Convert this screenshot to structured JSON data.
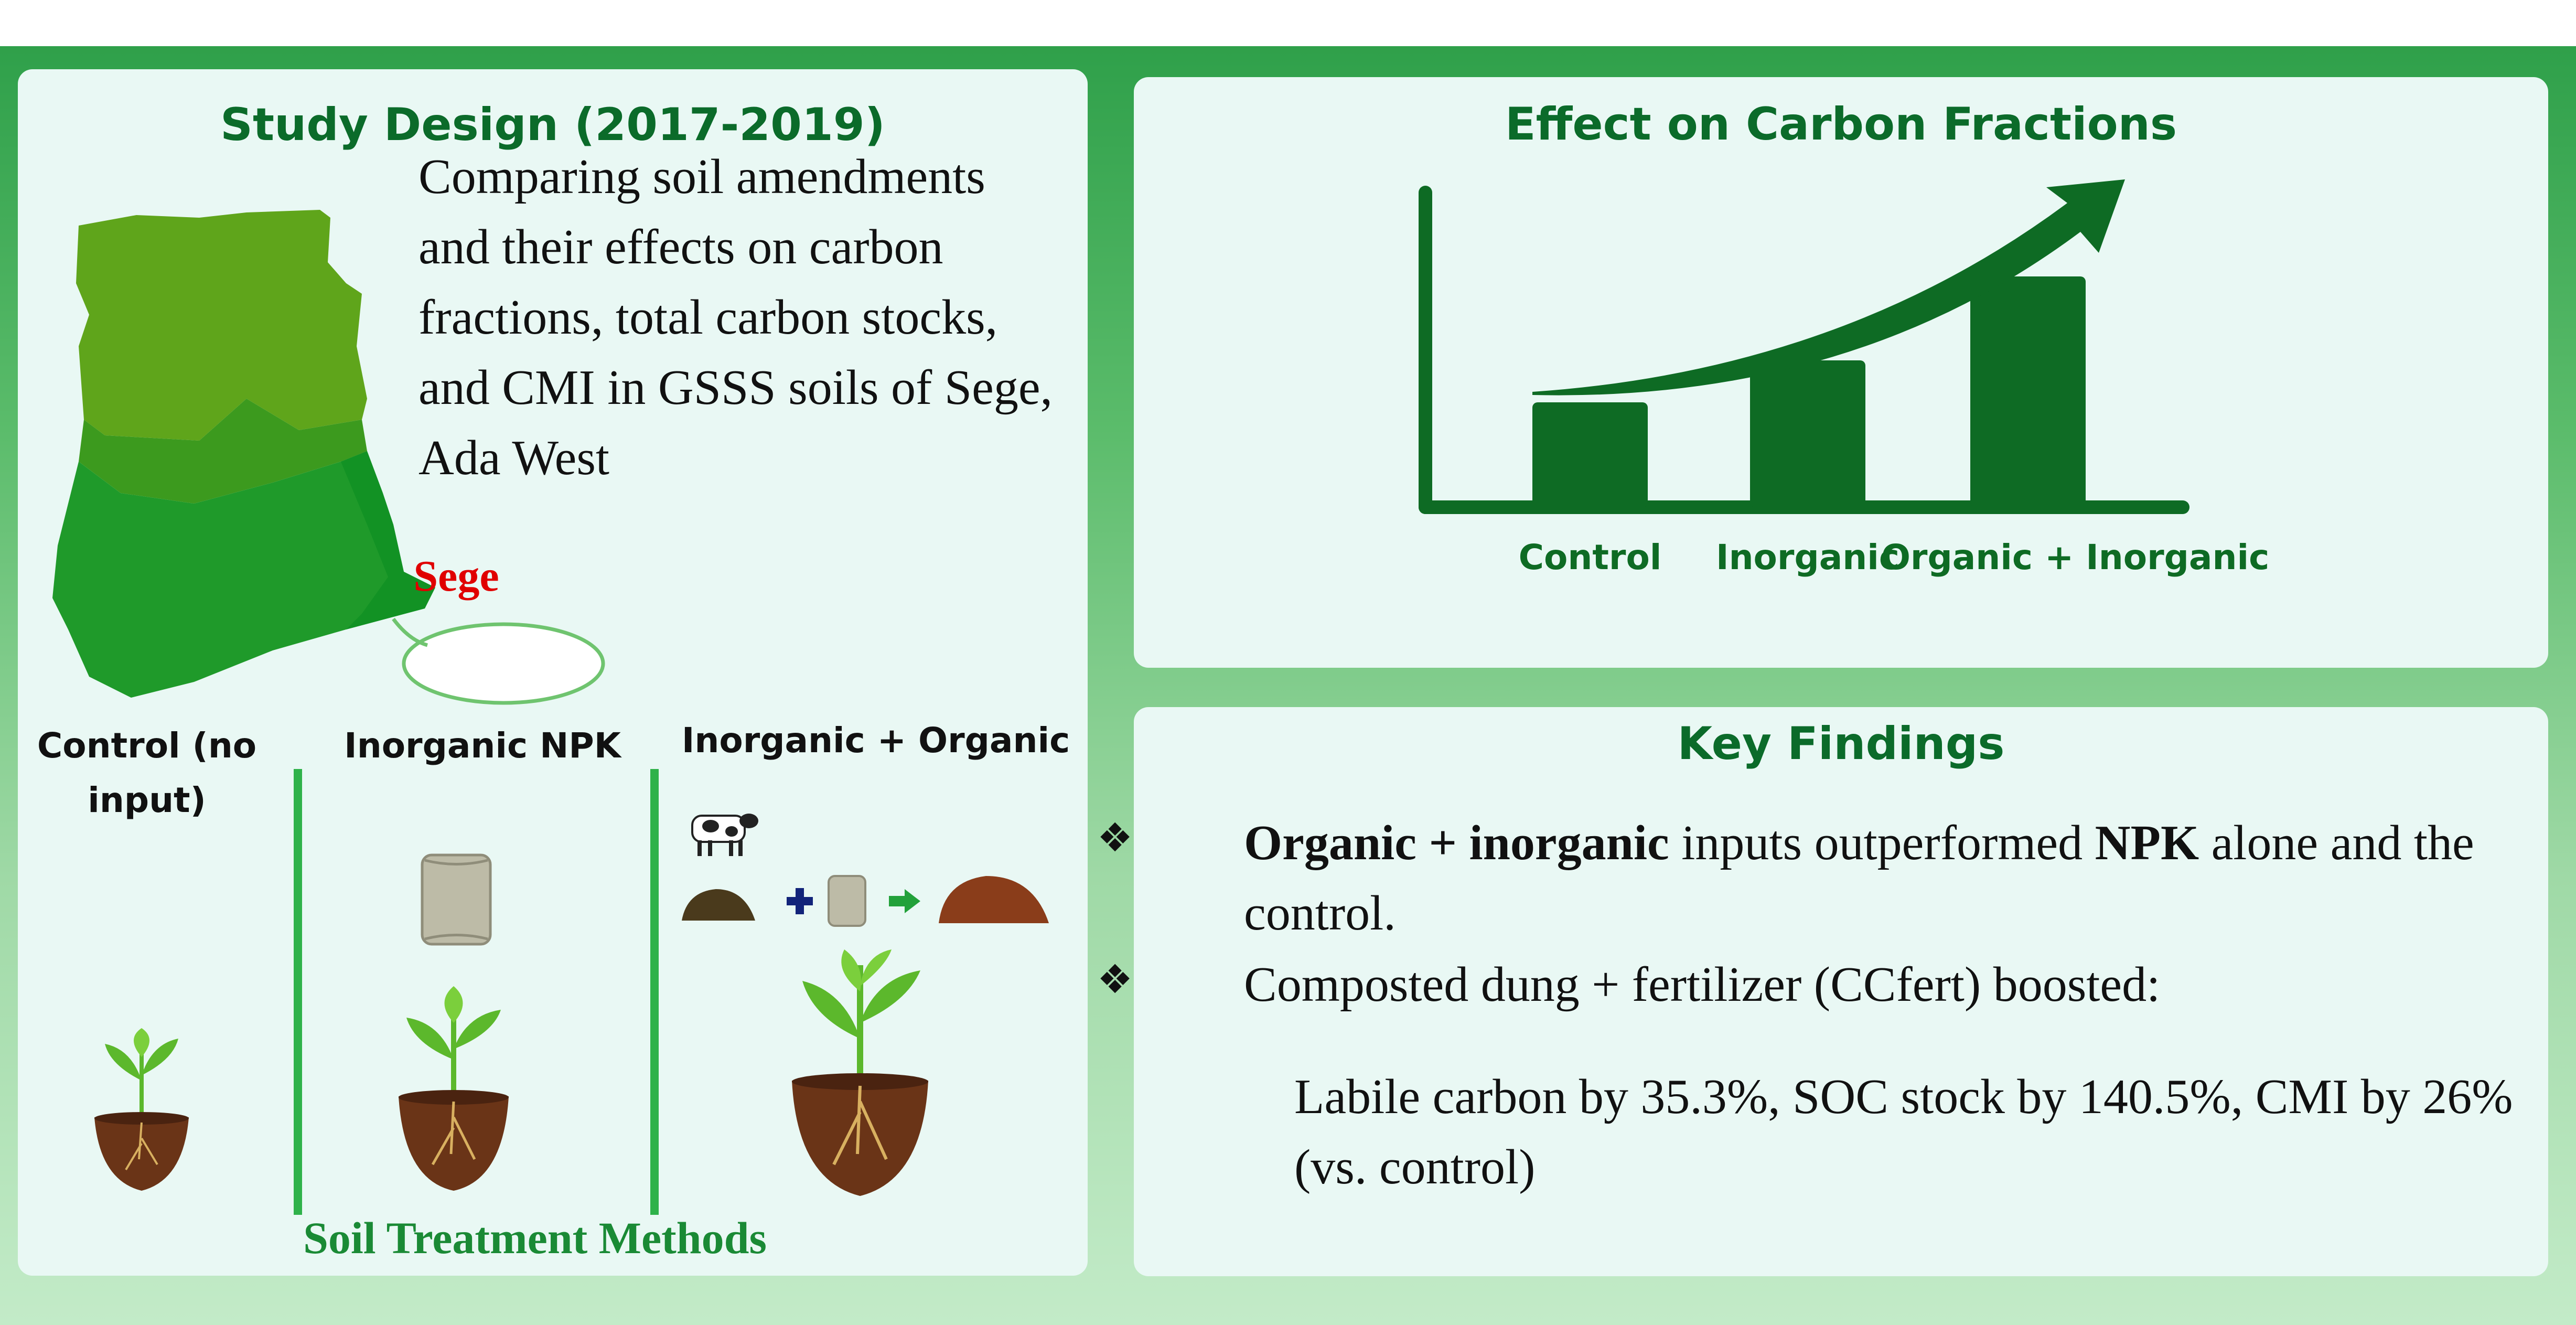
{
  "study": {
    "title": "Study Design (2017-2019)",
    "description": "Comparing soil amendments and their effects on carbon fractions, total carbon stocks, and CMI in GSSS soils of Sege, Ada West",
    "location_label": "Sege",
    "treatments": [
      {
        "label": "Control (no input)"
      },
      {
        "label": "Inorganic NPK"
      },
      {
        "label": "Inorganic + Organic"
      }
    ],
    "treatments_title": "Soil Treatment Methods"
  },
  "effect": {
    "title": "Effect on Carbon Fractions"
  },
  "chart_data": {
    "type": "bar",
    "title": "Effect on Carbon Fractions",
    "categories": [
      "Control",
      "Inorganic",
      "Organic + Inorganic"
    ],
    "values": [
      1.0,
      1.4,
      2.2
    ],
    "xlabel": "",
    "ylabel": "",
    "ylim": [
      0,
      3
    ],
    "grid": false,
    "trend_arrow": "increasing"
  },
  "key": {
    "title": "Key Findings",
    "finding1_bold1": "Organic + inorganic",
    "finding1_mid": " inputs outperformed ",
    "finding1_bold2": "NPK",
    "finding1_end": " alone and the control.",
    "finding2": "Composted dung + fertilizer (CCfert) boosted:",
    "finding3": "Labile carbon by 35.3%, SOC stock by 140.5%, CMI by 26% (vs. control)"
  },
  "colors": {
    "background": "#4caf50",
    "panel": "#e9f8f4",
    "title_green": "#0b6b2a",
    "chart_green": "#0e6b24",
    "highlight_red": "#e00000"
  }
}
